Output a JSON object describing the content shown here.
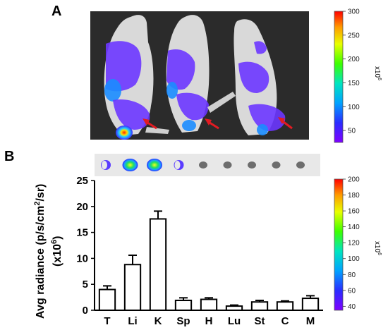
{
  "panel_a": {
    "label": "A",
    "colorbar": {
      "min": 25,
      "max": 300,
      "ticks": [
        "50",
        "100",
        "150",
        "200",
        "250",
        "300"
      ],
      "unit": "x10",
      "exponent": "6"
    },
    "mice": [
      {
        "id": "mouse-1"
      },
      {
        "id": "mouse-2"
      },
      {
        "id": "mouse-3"
      }
    ],
    "arrow_color": "#e21b22"
  },
  "panel_b": {
    "label": "B",
    "colorbar": {
      "min": 35,
      "max": 200,
      "ticks": [
        "40",
        "60",
        "80",
        "100",
        "120",
        "140",
        "160",
        "180",
        "200"
      ],
      "unit": "x10",
      "exponent": "6"
    },
    "organs_strip": [
      {
        "key": "T",
        "signal": "low"
      },
      {
        "key": "Li",
        "signal": "high"
      },
      {
        "key": "K",
        "signal": "high"
      },
      {
        "key": "Sp",
        "signal": "low"
      },
      {
        "key": "H",
        "signal": "none"
      },
      {
        "key": "Lu",
        "signal": "none"
      },
      {
        "key": "St",
        "signal": "none"
      },
      {
        "key": "C",
        "signal": "none"
      },
      {
        "key": "M",
        "signal": "none"
      }
    ]
  },
  "chart_data": {
    "type": "bar",
    "categories": [
      "T",
      "Li",
      "K",
      "Sp",
      "H",
      "Lu",
      "St",
      "C",
      "M"
    ],
    "series": [
      {
        "values": [
          4.0,
          8.8,
          17.6,
          1.9,
          2.1,
          0.8,
          1.6,
          1.6,
          2.3
        ],
        "errors": [
          0.7,
          1.8,
          1.5,
          0.5,
          0.3,
          0.2,
          0.3,
          0.2,
          0.5
        ]
      }
    ],
    "title": "",
    "xlabel": "",
    "ylabel_main": "Avg radiance (p/s/cm",
    "ylabel_sup": "2",
    "ylabel_tail": "/sr)",
    "ylabel2_main": "(x10",
    "ylabel2_sup": "6",
    "ylabel2_tail": ")",
    "ylim": [
      0,
      25
    ],
    "yticks": [
      "0",
      "5",
      "10",
      "15",
      "20",
      "25"
    ],
    "grid": false,
    "bar_fill": "#ffffff",
    "bar_stroke": "#000000"
  }
}
